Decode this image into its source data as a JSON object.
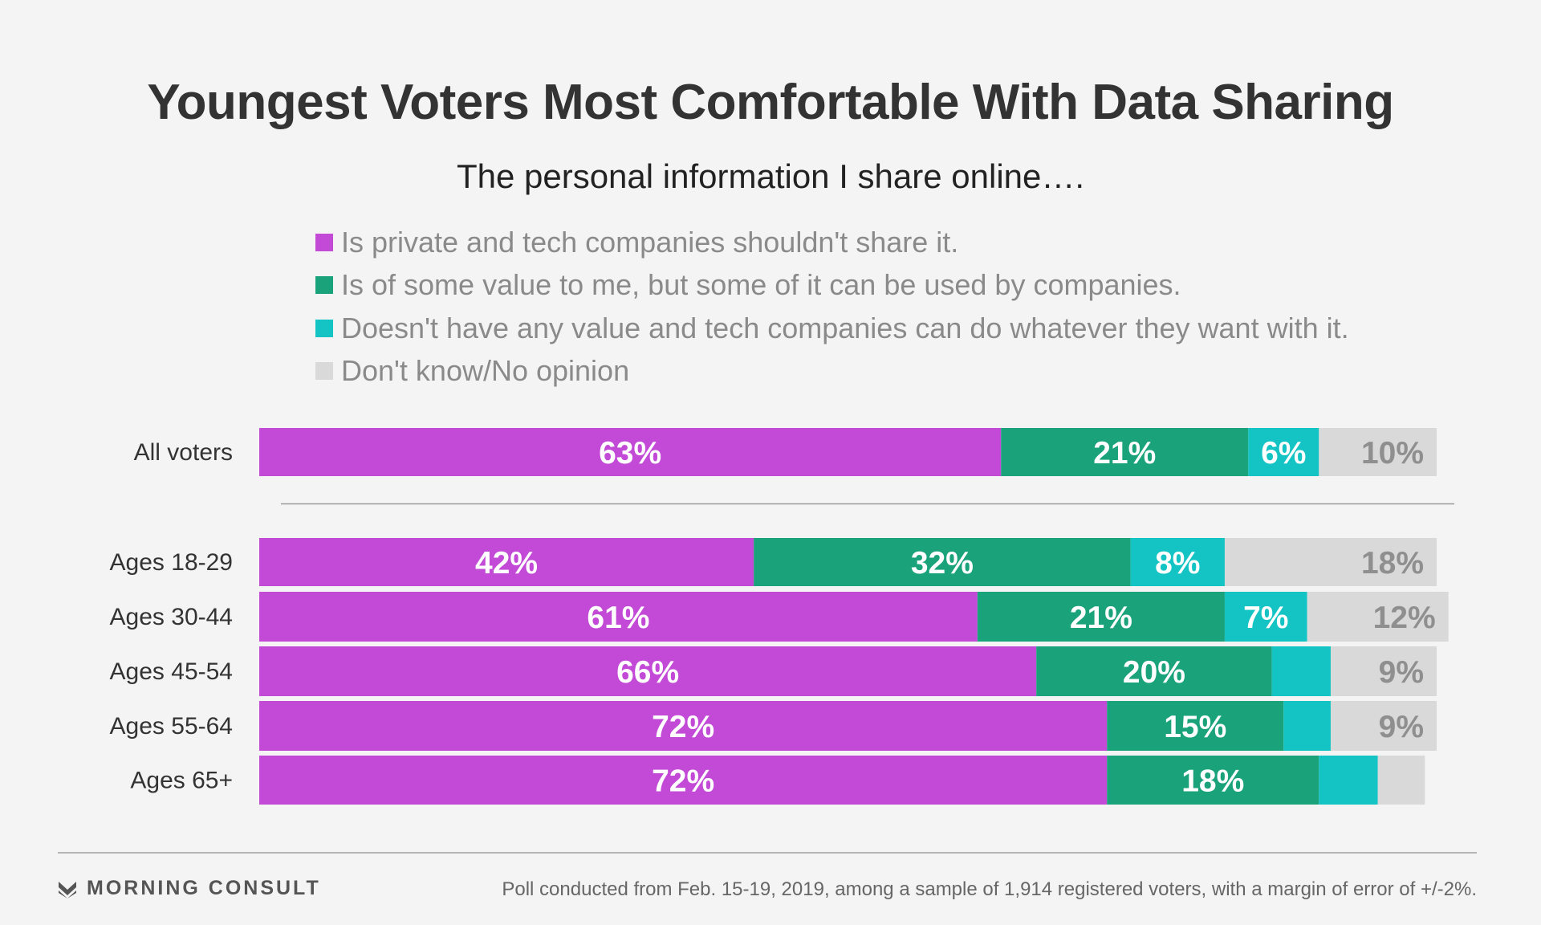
{
  "header": {
    "title": "Youngest Voters Most Comfortable With Data Sharing",
    "subtitle": "The personal information I share online…."
  },
  "legend": [
    {
      "label": "Is private and tech companies shouldn't share it.",
      "color": "#c24ad6"
    },
    {
      "label": "Is of some value to me, but some of it can be used by companies.",
      "color": "#1aa37a"
    },
    {
      "label": "Doesn't have any value and tech companies can do whatever they want with it.",
      "color": "#14c4c4"
    },
    {
      "label": "Don't know/No opinion",
      "color": "#d9d9d9"
    }
  ],
  "chart_data": {
    "type": "bar",
    "orientation": "horizontal",
    "stacked": true,
    "title": "Youngest Voters Most Comfortable With Data Sharing",
    "subtitle": "The personal information I share online….",
    "categories": [
      "All voters",
      "Ages 18-29",
      "Ages 30-44",
      "Ages 45-54",
      "Ages 55-64",
      "Ages 65+"
    ],
    "series": [
      {
        "name": "Is private and tech companies shouldn't share it.",
        "color": "#c24ad6",
        "values": [
          63,
          42,
          61,
          66,
          72,
          72
        ],
        "labels": [
          "63%",
          "42%",
          "61%",
          "66%",
          "72%",
          "72%"
        ]
      },
      {
        "name": "Is of some value to me, but some of it can be used by companies.",
        "color": "#1aa37a",
        "values": [
          21,
          32,
          21,
          20,
          15,
          18
        ],
        "labels": [
          "21%",
          "32%",
          "21%",
          "20%",
          "15%",
          "18%"
        ]
      },
      {
        "name": "Doesn't have any value and tech companies can do whatever they want with it.",
        "color": "#14c4c4",
        "values": [
          6,
          8,
          7,
          5,
          4,
          5
        ],
        "labels": [
          "6%",
          "8%",
          "7%",
          "",
          "",
          ""
        ]
      },
      {
        "name": "Don't know/No opinion",
        "color": "#d9d9d9",
        "values": [
          10,
          18,
          12,
          9,
          9,
          4
        ],
        "labels": [
          "10%",
          "18%",
          "12%",
          "9%",
          "9%",
          ""
        ]
      }
    ],
    "xlim": [
      0,
      100
    ],
    "grid": false,
    "legend_position": "top"
  },
  "footer": {
    "brand": "MORNING CONSULT",
    "source": "Poll conducted from Feb. 15-19, 2019, among a sample of 1,914 registered voters, with a margin of error of +/-2%."
  }
}
